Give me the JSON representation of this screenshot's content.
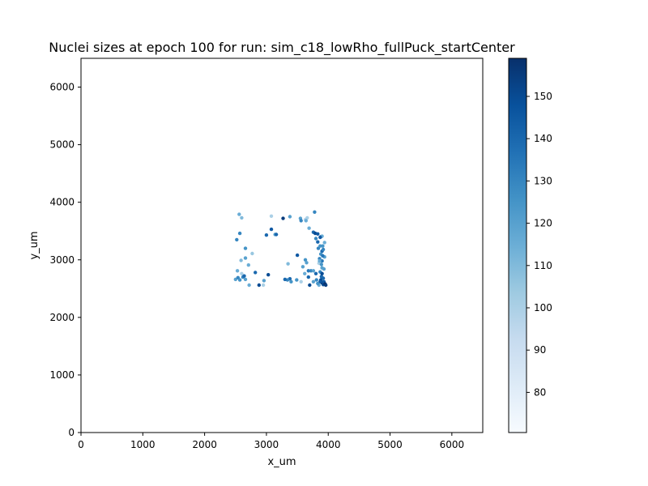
{
  "chart_data": {
    "type": "scatter",
    "title": "Nuclei sizes at epoch 100 for run: sim_c18_lowRho_fullPuck_startCenter",
    "xlabel": "x_um",
    "ylabel": "y_um",
    "xlim": [
      0,
      6500
    ],
    "ylim": [
      0,
      6500
    ],
    "xticks": [
      0,
      1000,
      2000,
      3000,
      4000,
      5000,
      6000
    ],
    "yticks": [
      0,
      1000,
      2000,
      3000,
      4000,
      5000,
      6000
    ],
    "grid": false,
    "colorbar": {
      "cmap": "Blues",
      "range": [
        70.5,
        159
      ],
      "ticks": [
        80,
        90,
        100,
        110,
        120,
        130,
        140,
        150
      ]
    },
    "points": [
      [
        2560,
        3790,
        115
      ],
      [
        2600,
        3730,
        110
      ],
      [
        2570,
        3460,
        130
      ],
      [
        2520,
        3350,
        130
      ],
      [
        2660,
        3200,
        125
      ],
      [
        2770,
        3110,
        105
      ],
      [
        2660,
        3030,
        120
      ],
      [
        2590,
        2990,
        110
      ],
      [
        2710,
        2910,
        115
      ],
      [
        2530,
        2810,
        115
      ],
      [
        2600,
        2760,
        100
      ],
      [
        2500,
        2660,
        120
      ],
      [
        2540,
        2690,
        130
      ],
      [
        2570,
        2650,
        125
      ],
      [
        2620,
        2700,
        130
      ],
      [
        2660,
        2660,
        120
      ],
      [
        2640,
        2720,
        140
      ],
      [
        2720,
        2560,
        115
      ],
      [
        2820,
        2780,
        140
      ],
      [
        2880,
        2560,
        150
      ],
      [
        2960,
        2640,
        120
      ],
      [
        2950,
        2560,
        100
      ],
      [
        3030,
        2740,
        150
      ],
      [
        3000,
        3430,
        140
      ],
      [
        3080,
        3530,
        145
      ],
      [
        3140,
        3440,
        120
      ],
      [
        3160,
        3440,
        140
      ],
      [
        3080,
        3760,
        100
      ],
      [
        3270,
        3720,
        155
      ],
      [
        3380,
        3750,
        120
      ],
      [
        3550,
        3720,
        120
      ],
      [
        3560,
        3680,
        130
      ],
      [
        3630,
        3700,
        95
      ],
      [
        3660,
        3730,
        100
      ],
      [
        3640,
        3680,
        115
      ],
      [
        3690,
        3550,
        115
      ],
      [
        3780,
        3830,
        130
      ],
      [
        3760,
        3480,
        140
      ],
      [
        3790,
        3460,
        150
      ],
      [
        3830,
        3450,
        145
      ],
      [
        3800,
        3370,
        130
      ],
      [
        3830,
        3310,
        140
      ],
      [
        3880,
        3400,
        140
      ],
      [
        3900,
        3410,
        115
      ],
      [
        3840,
        3200,
        130
      ],
      [
        3870,
        3240,
        125
      ],
      [
        3900,
        3150,
        140
      ],
      [
        3880,
        3100,
        125
      ],
      [
        3860,
        3020,
        130
      ],
      [
        3900,
        2980,
        135
      ],
      [
        3850,
        2940,
        100
      ],
      [
        3900,
        2860,
        120
      ],
      [
        3870,
        2790,
        130
      ],
      [
        3930,
        2840,
        120
      ],
      [
        3890,
        2710,
        140
      ],
      [
        3880,
        2650,
        150
      ],
      [
        3900,
        2600,
        155
      ],
      [
        3920,
        2570,
        150
      ],
      [
        3870,
        2620,
        145
      ],
      [
        3810,
        2650,
        130
      ],
      [
        3760,
        2620,
        120
      ],
      [
        3700,
        2560,
        150
      ],
      [
        3680,
        2810,
        135
      ],
      [
        3720,
        2810,
        130
      ],
      [
        3760,
        2810,
        120
      ],
      [
        3800,
        2760,
        140
      ],
      [
        3680,
        2700,
        140
      ],
      [
        3630,
        3000,
        125
      ],
      [
        3500,
        3080,
        145
      ],
      [
        3560,
        2620,
        100
      ],
      [
        3490,
        2650,
        125
      ],
      [
        3380,
        2670,
        140
      ],
      [
        3400,
        2620,
        125
      ],
      [
        3340,
        2650,
        130
      ],
      [
        3300,
        2660,
        140
      ],
      [
        3350,
        2930,
        110
      ],
      [
        3620,
        2760,
        115
      ],
      [
        3590,
        2880,
        120
      ],
      [
        3650,
        2950,
        120
      ],
      [
        3930,
        2620,
        145
      ],
      [
        3950,
        2580,
        160
      ],
      [
        3960,
        2560,
        155
      ],
      [
        3940,
        3050,
        120
      ],
      [
        3920,
        3180,
        130
      ],
      [
        3940,
        3300,
        115
      ],
      [
        3910,
        3240,
        125
      ],
      [
        3870,
        3390,
        145
      ],
      [
        3860,
        2980,
        115
      ],
      [
        3900,
        2760,
        150
      ],
      [
        3920,
        2680,
        140
      ],
      [
        3850,
        2560,
        115
      ],
      [
        3830,
        2590,
        125
      ],
      [
        3890,
        2920,
        125
      ],
      [
        3910,
        3070,
        135
      ]
    ]
  }
}
